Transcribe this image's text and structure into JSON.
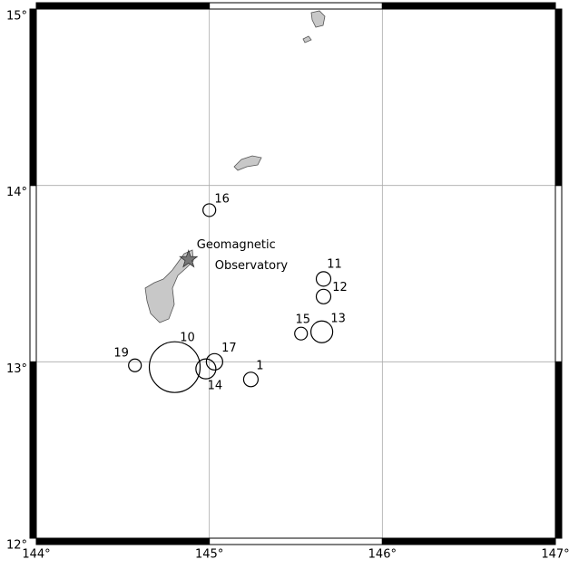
{
  "chart_data": {
    "type": "scatter",
    "xlim": [
      144,
      147
    ],
    "ylim": [
      12,
      15
    ],
    "xticks": [
      {
        "value": 144,
        "label": "144°"
      },
      {
        "value": 145,
        "label": "145°"
      },
      {
        "value": 146,
        "label": "146°"
      },
      {
        "value": 147,
        "label": "147°"
      }
    ],
    "yticks": [
      {
        "value": 12,
        "label": "12°"
      },
      {
        "value": 13,
        "label": "13°"
      },
      {
        "value": 14,
        "label": "14°"
      },
      {
        "value": 15,
        "label": "15°"
      }
    ],
    "grid": true,
    "series": [
      {
        "color": "#000000",
        "labels": [
          "16",
          "11",
          "12",
          "15",
          "13",
          "10",
          "17",
          "14",
          "19",
          "1"
        ],
        "x": [
          145.0,
          145.66,
          145.66,
          145.53,
          145.65,
          144.8,
          145.03,
          144.98,
          144.57,
          145.24
        ],
        "values": [
          13.86,
          13.47,
          13.37,
          13.16,
          13.17,
          12.97,
          13.0,
          12.96,
          12.98,
          12.9
        ],
        "sizes": [
          7,
          8,
          8,
          7,
          12,
          28,
          9,
          11,
          7,
          8
        ]
      }
    ],
    "station": {
      "x": 144.88,
      "y": 13.58,
      "label": [
        "Geomagnetic",
        "Observatory"
      ]
    }
  }
}
